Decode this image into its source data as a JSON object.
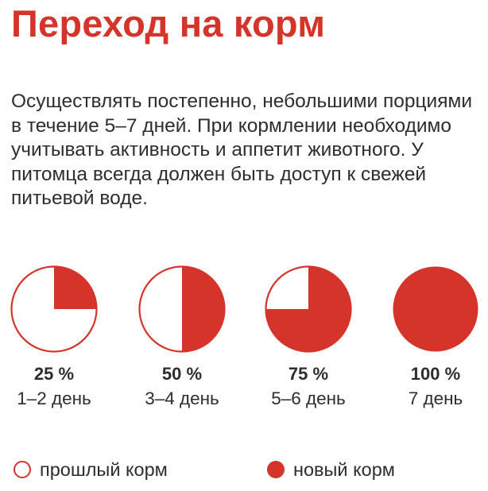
{
  "title": "Переход на корм",
  "description": "Осуществлять постепенно, небольшими порциями в течение 5–7 дней. При кормлении необходимо учитывать активность и аппетит животного. У питомца всегда должен быть доступ к свежей питьевой воде.",
  "colors": {
    "accent": "#d5342a",
    "text": "#2d2d2d",
    "background": "#ffffff"
  },
  "chart_data": {
    "type": "pie",
    "title": "Переход на корм",
    "series": [
      {
        "name": "новый корм",
        "values": [
          25,
          50,
          75,
          100
        ]
      },
      {
        "name": "прошлый корм",
        "values": [
          75,
          50,
          25,
          0
        ]
      }
    ],
    "categories": [
      "1–2 день",
      "3–4 день",
      "5–6 день",
      "7 день"
    ],
    "labels": [
      "25 %",
      "50 %",
      "75 %",
      "100 %"
    ],
    "legend": {
      "placement": "bottom",
      "entries": [
        {
          "label": "прошлый корм",
          "style": "hollow-circle"
        },
        {
          "label": "новый корм",
          "style": "filled-circle"
        }
      ]
    }
  }
}
